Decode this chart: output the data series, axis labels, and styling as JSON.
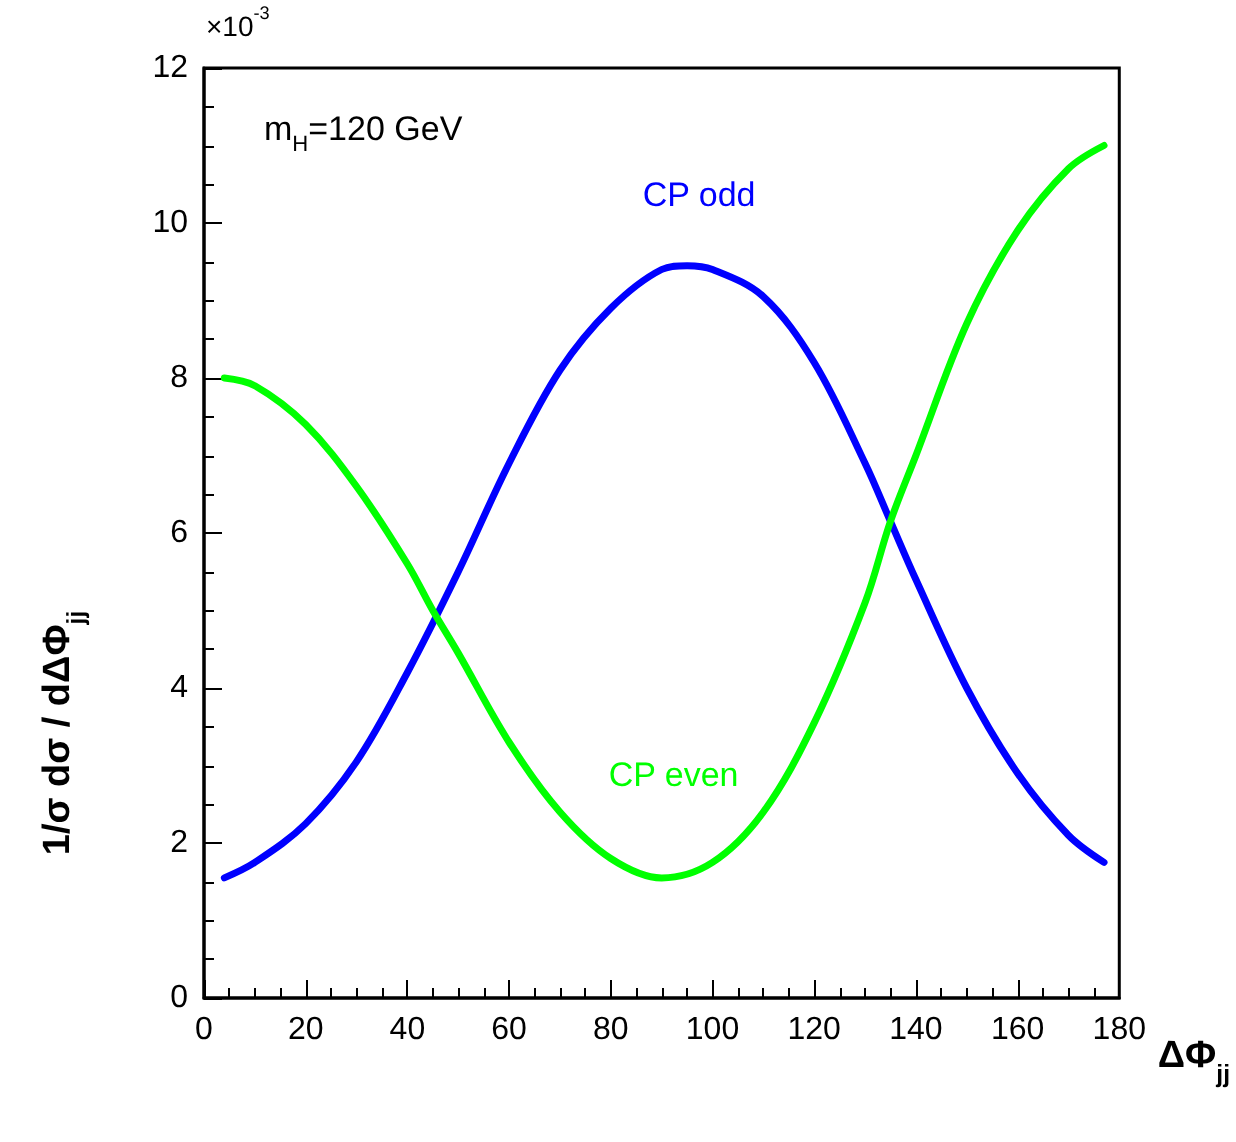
{
  "chart_data": {
    "type": "line",
    "xlabel": "ΔΦ$_{jj}$",
    "ylabel": "1/σ dσ / dΔΦ$_{jj}$",
    "annotations": [
      "×10$^{-3}$",
      "m$_{H}$=120 GeV"
    ],
    "xlim": [
      0,
      180
    ],
    "xticks": [
      0,
      20,
      40,
      60,
      80,
      100,
      120,
      140,
      160,
      180
    ],
    "ylim": [
      0,
      12
    ],
    "yticks": [
      0,
      2,
      4,
      6,
      8,
      10,
      12
    ],
    "grid": false,
    "legend": false,
    "marker": "none",
    "line_style": "solid",
    "series": [
      {
        "name": "CP odd",
        "color": "#0000ff",
        "x": [
          4,
          10,
          20,
          30,
          40,
          50,
          60,
          70,
          80,
          90,
          95,
          100,
          110,
          120,
          130,
          135,
          140,
          150,
          160,
          170,
          177
        ],
        "values": [
          1.55,
          1.75,
          2.25,
          3.05,
          4.2,
          5.5,
          6.9,
          8.1,
          8.9,
          9.4,
          9.45,
          9.4,
          9.05,
          8.2,
          6.9,
          6.15,
          5.4,
          4.0,
          2.9,
          2.1,
          1.75
        ]
      },
      {
        "name": "CP even",
        "color": "#00ff00",
        "x": [
          4,
          10,
          20,
          30,
          40,
          45,
          50,
          60,
          70,
          80,
          90,
          100,
          110,
          120,
          130,
          135,
          140,
          150,
          160,
          170,
          177
        ],
        "values": [
          8.0,
          7.9,
          7.4,
          6.6,
          5.6,
          5.0,
          4.45,
          3.3,
          2.4,
          1.8,
          1.55,
          1.75,
          2.4,
          3.55,
          5.1,
          6.15,
          7.0,
          8.7,
          9.9,
          10.7,
          11.0
        ]
      }
    ]
  }
}
